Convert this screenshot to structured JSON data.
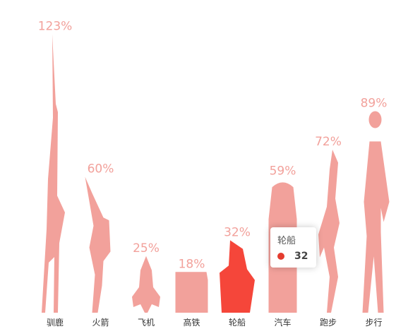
{
  "chart_data": {
    "type": "pictorial-bar",
    "categories": [
      "驯鹿",
      "火箭",
      "飞机",
      "高铁",
      "轮船",
      "汽车",
      "跑步",
      "步行"
    ],
    "values": [
      123,
      60,
      25,
      18,
      32,
      59,
      72,
      89
    ],
    "value_suffix": "%",
    "ylim": [
      0,
      130
    ],
    "highlighted": "轮船",
    "icons": [
      "reindeer-icon",
      "rocket-icon",
      "plane-icon",
      "train-icon",
      "ship-icon",
      "car-icon",
      "run-icon",
      "walk-icon"
    ],
    "colors": {
      "bar": "#f2a19b",
      "highlight": "#f5463a",
      "label": "#f2a19b"
    }
  },
  "tooltip": {
    "title": "轮船",
    "value": "32",
    "dot_color": "#e43c2f"
  }
}
